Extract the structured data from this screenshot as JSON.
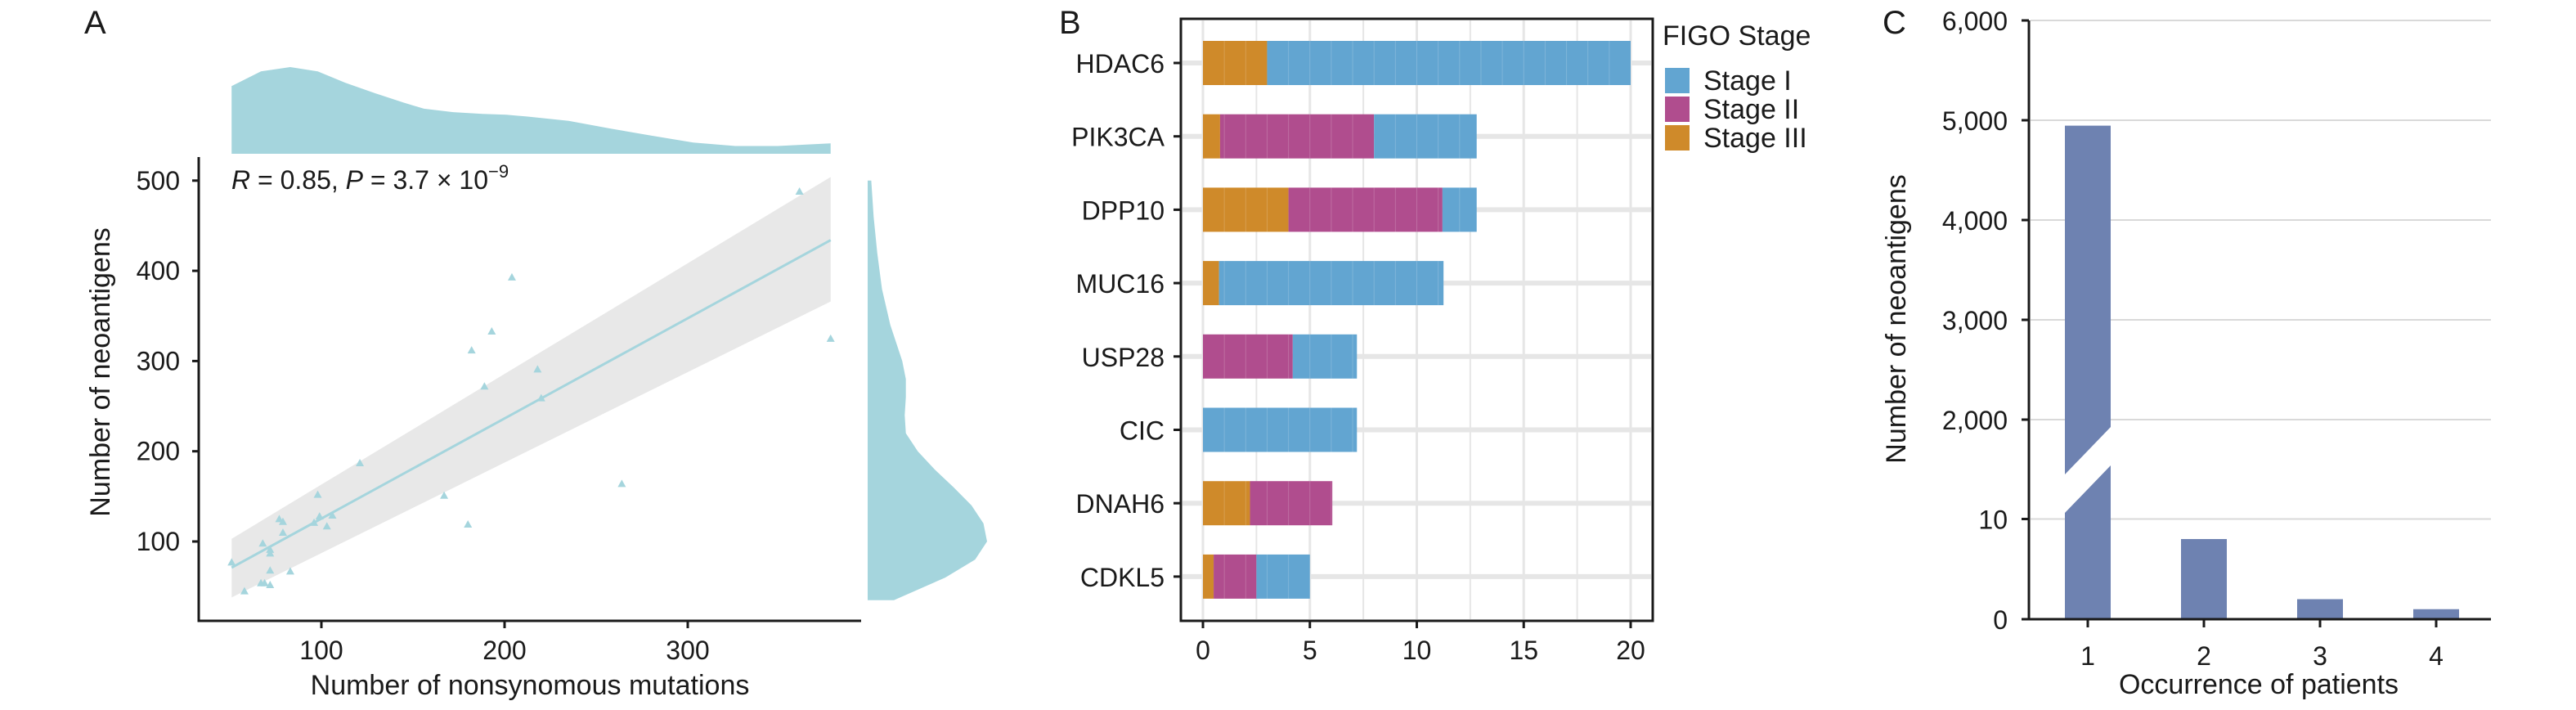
{
  "chart_data": [
    {
      "panel": "A",
      "type": "scatter",
      "title": "",
      "xlabel": "Number of nonsynomous mutations",
      "ylabel": "Number of neoantigens",
      "xlim": [
        32,
        394
      ],
      "ylim": [
        0,
        520
      ],
      "xticks": [
        100,
        200,
        300
      ],
      "yticks": [
        100,
        200,
        300,
        400,
        500
      ],
      "annotation": {
        "r_label": "R",
        "r_text": " = 0.85, ",
        "p_label": "P",
        "p_text": " = 3.7 × 10",
        "p_exp": "−9"
      },
      "grid": false,
      "marker": "triangle",
      "color": "#a5d5dd",
      "points": [
        {
          "x": 51,
          "y": 77
        },
        {
          "x": 58,
          "y": 45
        },
        {
          "x": 67,
          "y": 54
        },
        {
          "x": 69,
          "y": 54
        },
        {
          "x": 72,
          "y": 52
        },
        {
          "x": 68,
          "y": 98
        },
        {
          "x": 72,
          "y": 91
        },
        {
          "x": 72,
          "y": 87
        },
        {
          "x": 72,
          "y": 68
        },
        {
          "x": 83,
          "y": 67
        },
        {
          "x": 77,
          "y": 125
        },
        {
          "x": 79,
          "y": 122
        },
        {
          "x": 79,
          "y": 110
        },
        {
          "x": 98,
          "y": 152
        },
        {
          "x": 99,
          "y": 128
        },
        {
          "x": 96,
          "y": 121
        },
        {
          "x": 103,
          "y": 117
        },
        {
          "x": 106,
          "y": 129
        },
        {
          "x": 121,
          "y": 187
        },
        {
          "x": 167,
          "y": 151
        },
        {
          "x": 180,
          "y": 119
        },
        {
          "x": 182,
          "y": 312
        },
        {
          "x": 189,
          "y": 272
        },
        {
          "x": 193,
          "y": 333
        },
        {
          "x": 204,
          "y": 393
        },
        {
          "x": 218,
          "y": 291
        },
        {
          "x": 220,
          "y": 259
        },
        {
          "x": 264,
          "y": 164
        },
        {
          "x": 361,
          "y": 488
        },
        {
          "x": 378,
          "y": 325
        }
      ],
      "regression": {
        "x": [
          51,
          378
        ],
        "fit": [
          71,
          434
        ],
        "ci_lower": [
          38,
          366
        ],
        "ci_upper": [
          103,
          504
        ],
        "line_color": "#a5d5dd",
        "band_color": "#e8e8e8"
      },
      "marginal_x_density": {
        "x": [
          51,
          67,
          83,
          98,
          113,
          129,
          145,
          156,
          172,
          188,
          201,
          212,
          235,
          258,
          280,
          303,
          326,
          349,
          378
        ],
        "density": [
          0.78,
          0.95,
          1.0,
          0.95,
          0.82,
          0.7,
          0.59,
          0.52,
          0.48,
          0.46,
          0.45,
          0.43,
          0.38,
          0.29,
          0.21,
          0.13,
          0.09,
          0.09,
          0.12
        ]
      },
      "marginal_y_density": {
        "y": [
          35,
          60,
          80,
          100,
          120,
          140,
          160,
          180,
          200,
          220,
          240,
          260,
          280,
          300,
          320,
          340,
          380,
          420,
          460,
          500
        ],
        "density": [
          0.22,
          0.65,
          0.9,
          1.0,
          0.97,
          0.87,
          0.72,
          0.56,
          0.42,
          0.32,
          0.31,
          0.32,
          0.32,
          0.29,
          0.24,
          0.19,
          0.12,
          0.08,
          0.05,
          0.03
        ]
      },
      "density_color": "#a5d5dd"
    },
    {
      "panel": "B",
      "type": "bar",
      "orientation": "horizontal-stacked",
      "title": "",
      "xlabel": "",
      "ylabel": "",
      "xlim": [
        -1,
        21
      ],
      "xticks": [
        0,
        5,
        10,
        15,
        20
      ],
      "grid": true,
      "categories": [
        "HDAC6",
        "PIK3CA",
        "DPP10",
        "MUC16",
        "USP28",
        "CIC",
        "DNAH6",
        "CDKL5"
      ],
      "stack_order": [
        "Stage III",
        "Stage II",
        "Stage I"
      ],
      "series": [
        {
          "name": "Stage I",
          "color": "#62a5d1",
          "values": [
            17,
            4.8,
            1.6,
            10.5,
            3.0,
            7.2,
            0,
            2.5
          ]
        },
        {
          "name": "Stage II",
          "color": "#b04d8e",
          "values": [
            0,
            7.2,
            7.2,
            0,
            4.2,
            0,
            3.85,
            2.0
          ]
        },
        {
          "name": "Stage III",
          "color": "#cf8a2a",
          "values": [
            3,
            0.8,
            4.0,
            0.75,
            0,
            0,
            2.2,
            0.5
          ]
        }
      ],
      "legend": {
        "title": "FIGO Stage",
        "placement": "top-right-outside",
        "entries": [
          "Stage I",
          "Stage II",
          "Stage III"
        ]
      }
    },
    {
      "panel": "C",
      "type": "bar",
      "title": "",
      "xlabel": "Occurrence of patients",
      "ylabel": "Number of neoantigens",
      "categories": [
        "1",
        "2",
        "3",
        "4"
      ],
      "values": [
        4946,
        8,
        2,
        1
      ],
      "color": "#6e82b1",
      "axis_break": {
        "lower_range": [
          0,
          10
        ],
        "upper_range": [
          2000,
          6000
        ]
      },
      "yticks": [
        "0",
        "10",
        "2,000",
        "3,000",
        "4,000",
        "5,000",
        "6,000"
      ],
      "ytick_values": [
        0,
        10,
        2000,
        3000,
        4000,
        5000,
        6000
      ],
      "grid": true
    }
  ]
}
